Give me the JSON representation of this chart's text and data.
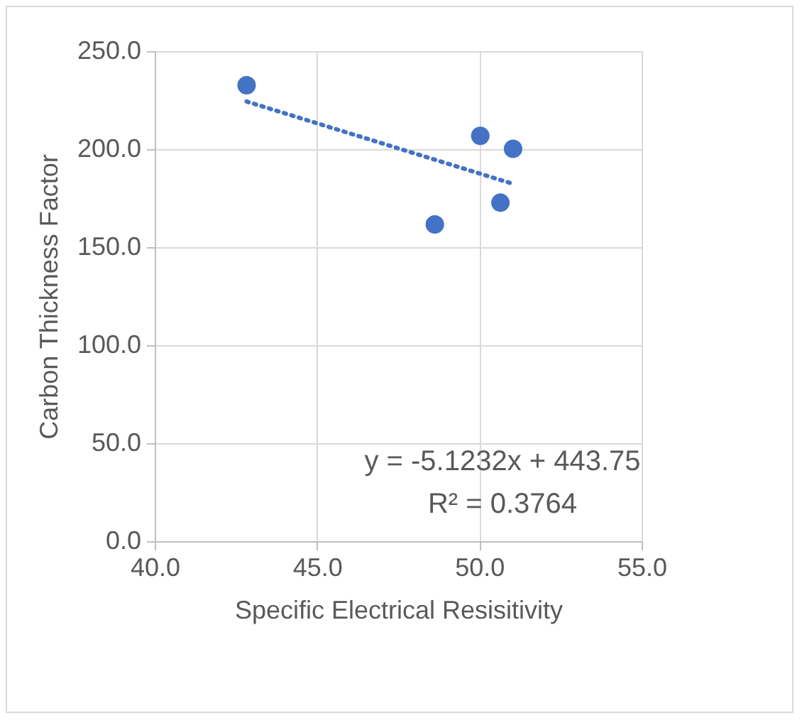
{
  "chart_data": {
    "type": "scatter",
    "xlabel": "Specific Electrical Resisitivity",
    "ylabel": "Carbon Thickness Factor",
    "series": [
      {
        "color": "#4472c4",
        "x": [
          42.83,
          50.03,
          51.04,
          50.65,
          48.63
        ],
        "values": [
          232.6,
          206.8,
          200.2,
          172.7,
          161.6
        ],
        "marker": "circle"
      },
      {
        "type": "line",
        "color": "#4472c4",
        "x": [
          42.83,
          51.04
        ],
        "values": [
          224.3,
          182.3
        ],
        "line_style": "dotted"
      }
    ],
    "annotations": [
      "y = -5.1232x + 443.75",
      "R² = 0.3764"
    ],
    "xlim": [
      40,
      55
    ],
    "xticks": [
      {
        "value": 40,
        "label": "40.0"
      },
      {
        "value": 45,
        "label": "45.0"
      },
      {
        "value": 50,
        "label": "50.0"
      },
      {
        "value": 55,
        "label": "55.0"
      }
    ],
    "ylim": [
      0,
      250
    ],
    "yticks": [
      {
        "value": 0,
        "label": "0.0"
      },
      {
        "value": 50,
        "label": "50.0"
      },
      {
        "value": 100,
        "label": "100.0"
      },
      {
        "value": 150,
        "label": "150.0"
      },
      {
        "value": 200,
        "label": "200.0"
      },
      {
        "value": 250,
        "label": "250.0"
      }
    ],
    "grid": true
  }
}
